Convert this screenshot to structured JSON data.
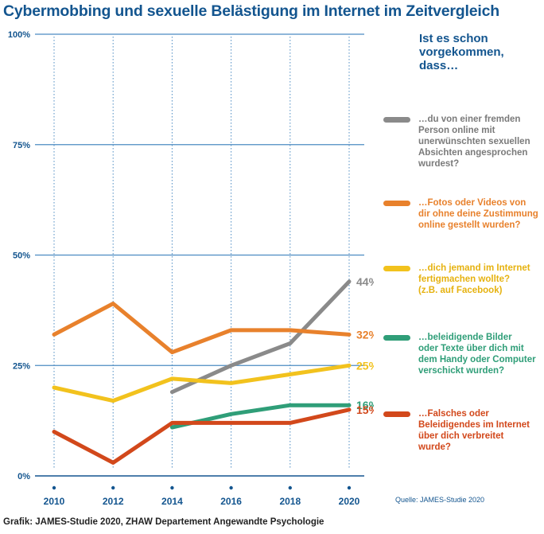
{
  "title": "Cybermobbing und sexuelle Belästigung im Internet im Zeitvergleich",
  "question": "Ist es schon\nvorgekommen,\ndass…",
  "source": "Quelle: JAMES-Studie 2020",
  "footer": "Grafik: JAMES-Studie 2020, ZHAW Departement Angewandte Psychologie",
  "colors": {
    "axis_blue": "#13558f",
    "grid_blue": "#4c8bc2",
    "gray": "#8a8a8a",
    "orange": "#e8812c",
    "yellow": "#f2c21d",
    "green": "#2f9e78",
    "red": "#d2481b"
  },
  "chart_data": {
    "type": "line",
    "title": "Cybermobbing und sexuelle Belästigung im Internet im Zeitvergleich",
    "xlabel": "",
    "ylabel": "",
    "x": [
      "2010",
      "2012",
      "2014",
      "2016",
      "2018",
      "2020"
    ],
    "y_ticks": [
      "0%",
      "25%",
      "50%",
      "75%",
      "100%"
    ],
    "ylim": [
      0,
      100
    ],
    "grid": true,
    "legend": "right",
    "series": [
      {
        "id": "gray",
        "name": "…du von einer fremden\nPerson online mit\nunerwünschten sexuellen\nAbsichten angesprochen\nwurdest?",
        "color": "#8a8a8a",
        "values": [
          null,
          null,
          19,
          25,
          30,
          44
        ],
        "end_label": "44%"
      },
      {
        "id": "orange",
        "name": "…Fotos oder Videos von\ndir ohne deine Zustimmung\nonline gestellt wurden?",
        "color": "#e8812c",
        "values": [
          32,
          39,
          28,
          33,
          33,
          32
        ],
        "end_label": "32%"
      },
      {
        "id": "yellow",
        "name": "…dich jemand im Internet\nfertigmachen wollte?\n(z.B. auf Facebook)",
        "color": "#f2c21d",
        "values": [
          20,
          17,
          22,
          21,
          23,
          25
        ],
        "end_label": "25%"
      },
      {
        "id": "green",
        "name": "…beleidigende Bilder\noder Texte über dich mit\ndem Handy oder Computer\nverschickt wurden?",
        "color": "#2f9e78",
        "values": [
          null,
          null,
          11,
          14,
          16,
          16
        ],
        "end_label": "16%"
      },
      {
        "id": "red",
        "name": "…Falsches oder\nBeleidigendes im Internet\nüber dich verbreitet\nwurde?",
        "color": "#d2481b",
        "values": [
          10,
          3,
          12,
          12,
          12,
          15
        ],
        "end_label": "15%"
      }
    ]
  }
}
